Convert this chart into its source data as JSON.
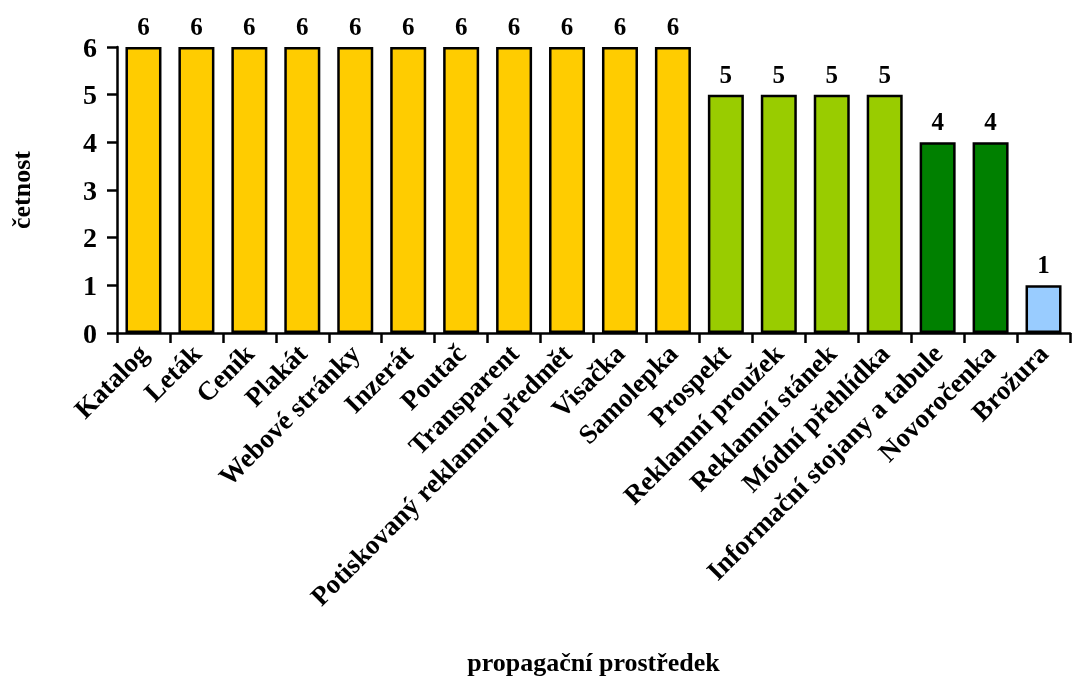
{
  "chart_data": {
    "type": "bar",
    "xlabel": "propagační prostředek",
    "ylabel": "četnost",
    "categories": [
      "Katalog",
      "Leták",
      "Ceník",
      "Plakát",
      "Webové stránky",
      "Inzerát",
      "Poutač",
      "Transparent",
      "Potiskovaný reklamní předmět",
      "Visačka",
      "Samolepka",
      "Prospekt",
      "Reklamní proužek",
      "Reklamní stánek",
      "Módní přehlídka",
      "Informační stojany a tabule",
      "Novoročenka",
      "Brožura"
    ],
    "values": [
      6,
      6,
      6,
      6,
      6,
      6,
      6,
      6,
      6,
      6,
      6,
      5,
      5,
      5,
      5,
      4,
      4,
      1
    ],
    "colors": [
      "#ffcc00",
      "#ffcc00",
      "#ffcc00",
      "#ffcc00",
      "#ffcc00",
      "#ffcc00",
      "#ffcc00",
      "#ffcc00",
      "#ffcc00",
      "#ffcc00",
      "#ffcc00",
      "#99cc00",
      "#99cc00",
      "#99cc00",
      "#99cc00",
      "#008000",
      "#008000",
      "#99ccff"
    ],
    "ylim": [
      0,
      6
    ],
    "yticks": [
      0,
      1,
      2,
      3,
      4,
      5,
      6
    ],
    "grid": false,
    "data_labels": true
  }
}
